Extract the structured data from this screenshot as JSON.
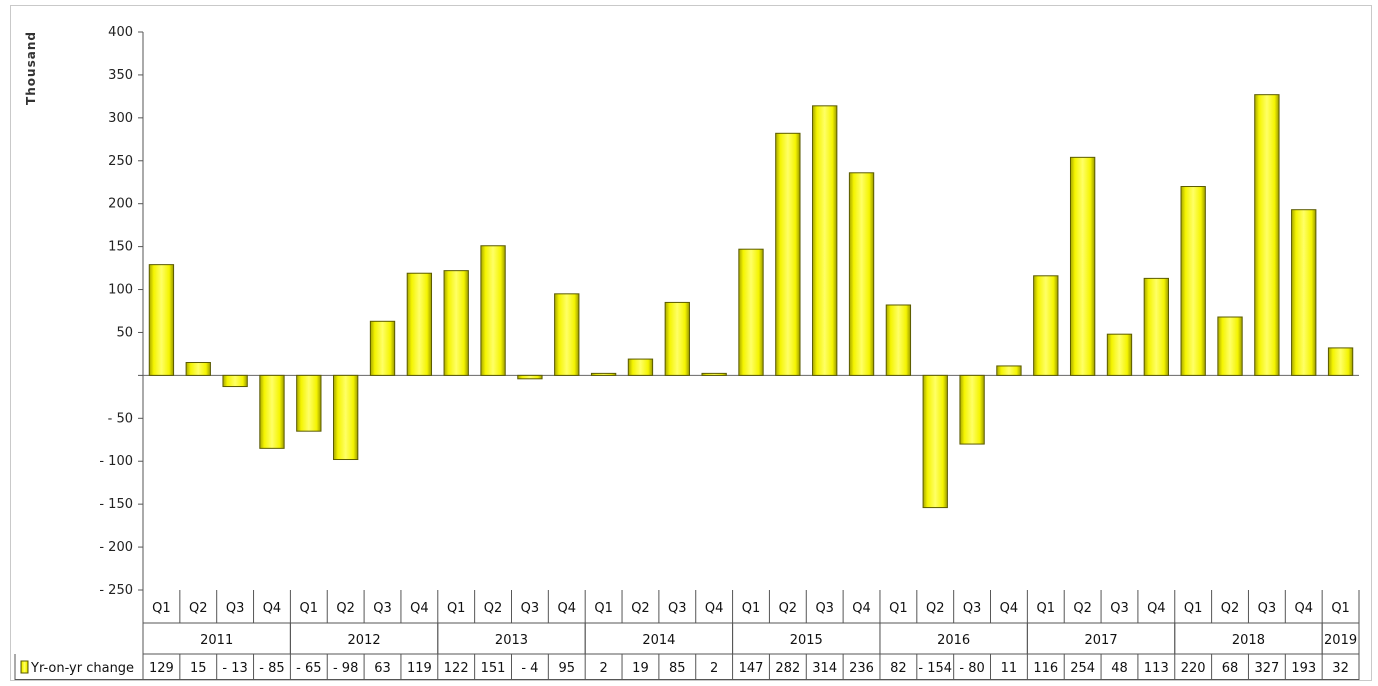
{
  "chart_data": {
    "type": "bar",
    "ylabel": "Thousand",
    "ylim": [
      -250,
      400
    ],
    "ytick_labels": [
      "400",
      "350",
      "300",
      "250",
      "200",
      "150",
      "100",
      "50",
      "",
      "- 50",
      "- 100",
      "- 150",
      "- 200",
      "- 250"
    ],
    "ytick_values": [
      400,
      350,
      300,
      250,
      200,
      150,
      100,
      50,
      0,
      -50,
      -100,
      -150,
      -200,
      -250
    ],
    "grid": false,
    "bar_color": "#f4f400",
    "bar_edge_color": "#5a5a00",
    "categories": [
      "Q1",
      "Q2",
      "Q3",
      "Q4",
      "Q1",
      "Q2",
      "Q3",
      "Q4",
      "Q1",
      "Q2",
      "Q3",
      "Q4",
      "Q1",
      "Q2",
      "Q3",
      "Q4",
      "Q1",
      "Q2",
      "Q3",
      "Q4",
      "Q1",
      "Q2",
      "Q3",
      "Q4",
      "Q1",
      "Q2",
      "Q3",
      "Q4",
      "Q1",
      "Q2",
      "Q3",
      "Q4",
      "Q1"
    ],
    "years": [
      {
        "label": "2011",
        "span": 4
      },
      {
        "label": "2012",
        "span": 4
      },
      {
        "label": "2013",
        "span": 4
      },
      {
        "label": "2014",
        "span": 4
      },
      {
        "label": "2015",
        "span": 4
      },
      {
        "label": "2016",
        "span": 4
      },
      {
        "label": "2017",
        "span": 4
      },
      {
        "label": "2018",
        "span": 4
      },
      {
        "label": "2019",
        "span": 1
      }
    ],
    "series": [
      {
        "name": "Yr-on-yr change",
        "values": [
          129,
          15,
          -13,
          -85,
          -65,
          -98,
          63,
          119,
          122,
          151,
          -4,
          95,
          2,
          19,
          85,
          2,
          147,
          282,
          314,
          236,
          82,
          -154,
          -80,
          11,
          116,
          254,
          48,
          113,
          220,
          68,
          327,
          193,
          32
        ],
        "value_labels": [
          "129",
          "15",
          "- 13",
          "- 85",
          "- 65",
          "- 98",
          "63",
          "119",
          "122",
          "151",
          "- 4",
          "95",
          "2",
          "19",
          "85",
          "2",
          "147",
          "282",
          "314",
          "236",
          "82",
          "- 154",
          "- 80",
          "11",
          "116",
          "254",
          "48",
          "113",
          "220",
          "68",
          "327",
          "193",
          "32"
        ]
      }
    ]
  }
}
